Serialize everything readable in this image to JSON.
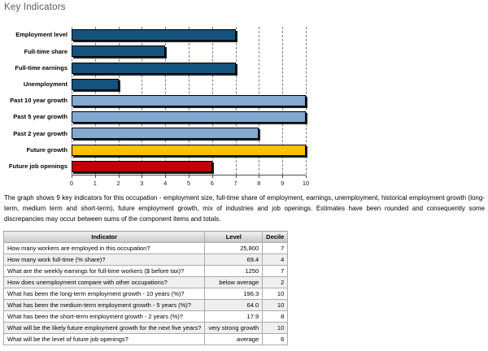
{
  "page": {
    "title": "Key Indicators"
  },
  "chart_data": {
    "type": "bar",
    "orientation": "horizontal",
    "title": "Key Indicators",
    "categories": [
      "Employment level",
      "Full-time share",
      "Full-time earnings",
      "Unemployment",
      "Past 10 year growth",
      "Past 5 year growth",
      "Past 2 year growth",
      "Future growth",
      "Future job openings"
    ],
    "values": [
      7,
      4,
      7,
      2,
      10,
      10,
      8,
      10,
      6
    ],
    "bar_colors": [
      "#16527E",
      "#16527E",
      "#16527E",
      "#16527E",
      "#84A8D0",
      "#84A8D0",
      "#84A8D0",
      "#FFC000",
      "#C00000"
    ],
    "xlim": [
      0,
      10
    ],
    "xticks": [
      "0",
      "1",
      "2",
      "3",
      "4",
      "5",
      "6",
      "7",
      "8",
      "9",
      "10"
    ],
    "grid": "dashed-vertical",
    "legend": "none"
  },
  "description": "The graph shows 9 key indicators for this occupation - employment size, full-time share of employment, earnings, unemployment, historical employment growth (long-term, medium term and short-term), future employment growth, mix of industries and job openings. Estimates have been rounded and consequently some discrepancies may occur between sums of the component items and totals.",
  "table": {
    "headers": [
      "Indicator",
      "Level",
      "Decile"
    ],
    "rows": [
      {
        "indicator": "How many workers are employed in this occupation?",
        "level": "25,800",
        "decile": "7"
      },
      {
        "indicator": "How many work full-time (% share)?",
        "level": "69.4",
        "decile": "4"
      },
      {
        "indicator": "What are the weekly earnings for full-time workers ($ before tax)?",
        "level": "1250",
        "decile": "7"
      },
      {
        "indicator": "How does unemployment compare with other occupations?",
        "level": "below average",
        "decile": "2"
      },
      {
        "indicator": "What has been the long-term employment growth - 10 years (%)?",
        "level": "196.3",
        "decile": "10"
      },
      {
        "indicator": "What has been the medium-term employment growth - 5 years (%)?",
        "level": "64.0",
        "decile": "10"
      },
      {
        "indicator": "What has been the short-term employment growth - 2 years (%)?",
        "level": "17.9",
        "decile": "8"
      },
      {
        "indicator": "What will be the likely future employment growth for the next five years?",
        "level": "very strong growth",
        "decile": "10"
      },
      {
        "indicator": "What will be the level of future job openings?",
        "level": "average",
        "decile": "6"
      }
    ]
  }
}
